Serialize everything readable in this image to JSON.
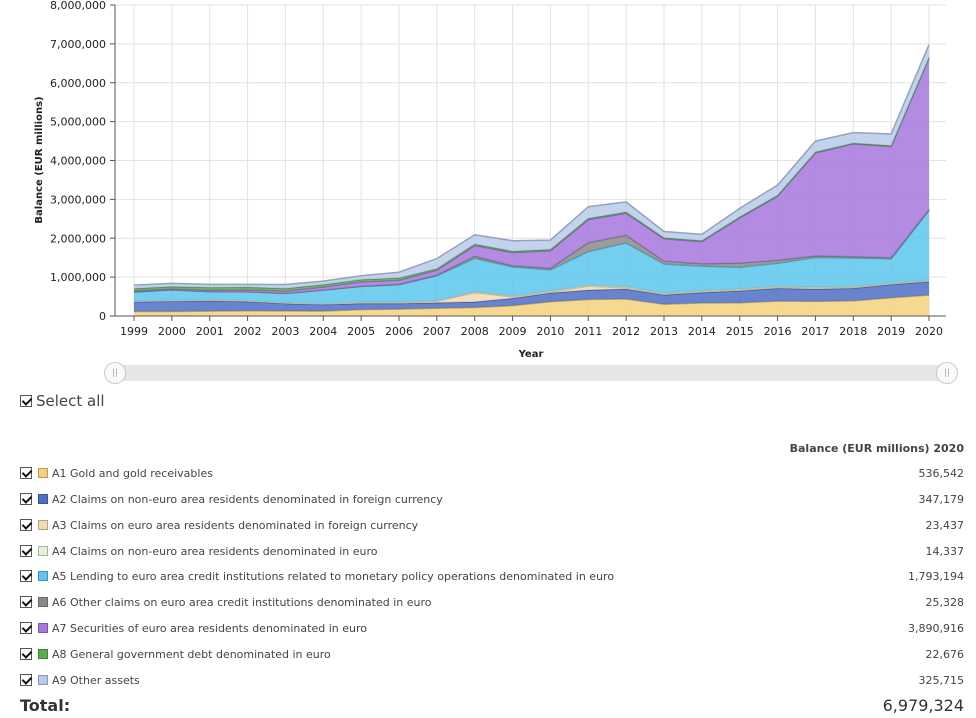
{
  "chart_data": {
    "type": "area",
    "stacked": true,
    "xlabel": "Year",
    "ylabel": "Balance (EUR millions)",
    "ylim": [
      0,
      8000000
    ],
    "yticks": [
      0,
      1000000,
      2000000,
      3000000,
      4000000,
      5000000,
      6000000,
      7000000,
      8000000
    ],
    "ytick_labels": [
      "0",
      "1,000,000",
      "2,000,000",
      "3,000,000",
      "4,000,000",
      "5,000,000",
      "6,000,000",
      "7,000,000",
      "8,000,000"
    ],
    "categories": [
      "1999",
      "2000",
      "2001",
      "2002",
      "2003",
      "2004",
      "2005",
      "2006",
      "2007",
      "2008",
      "2009",
      "2010",
      "2011",
      "2012",
      "2013",
      "2014",
      "2015",
      "2016",
      "2017",
      "2018",
      "2019",
      "2020"
    ],
    "series": [
      {
        "name": "A1 Gold and gold receivables",
        "color": "#f4d27a",
        "values": [
          117000,
          117000,
          126000,
          131000,
          130000,
          125000,
          163000,
          176000,
          201000,
          218000,
          266000,
          367000,
          423000,
          438000,
          303000,
          334000,
          338000,
          383000,
          376000,
          390000,
          470000,
          536542
        ]
      },
      {
        "name": "A2 Claims on non-euro area residents denominated in foreign currency",
        "color": "#4e6fc7",
        "values": [
          250000,
          263000,
          265000,
          240000,
          190000,
          170000,
          160000,
          145000,
          140000,
          145000,
          190000,
          225000,
          245000,
          255000,
          240000,
          272000,
          307000,
          330000,
          315000,
          325000,
          340000,
          347179
        ]
      },
      {
        "name": "A3 Claims on euro area residents denominated in foreign currency",
        "color": "#f5d9b0",
        "values": [
          15000,
          16000,
          22000,
          20000,
          18000,
          18000,
          23000,
          23000,
          40000,
          240000,
          40000,
          30000,
          100000,
          35000,
          23000,
          27000,
          30000,
          30000,
          36000,
          25000,
          22000,
          23437
        ]
      },
      {
        "name": "A4 Claims on non-euro area residents denominated in euro",
        "color": "#e4f0d8",
        "values": [
          8000,
          8000,
          10000,
          12000,
          10000,
          10000,
          10000,
          12000,
          15000,
          20000,
          20000,
          20000,
          25000,
          25000,
          20000,
          20000,
          20000,
          20000,
          15000,
          15000,
          15000,
          14337
        ]
      },
      {
        "name": "A5 Lending to euro area credit institutions related to monetary policy operations denominated in euro",
        "color": "#5bc6ec",
        "values": [
          225000,
          268000,
          203000,
          221000,
          235000,
          345000,
          405000,
          450000,
          637000,
          860000,
          749000,
          546000,
          863000,
          1126000,
          752000,
          630000,
          558000,
          595000,
          764000,
          736000,
          624000,
          1793194
        ]
      },
      {
        "name": "A6 Other claims on euro area credit institutions denominated in euro",
        "color": "#8a8a8a",
        "values": [
          12000,
          2000,
          0,
          0,
          0,
          0,
          5000,
          10000,
          20000,
          57000,
          27000,
          45000,
          230000,
          200000,
          75000,
          60000,
          110000,
          75000,
          40000,
          35000,
          30000,
          25328
        ]
      },
      {
        "name": "A7 Securities of euro area residents denominated in euro",
        "color": "#a777dd",
        "values": [
          22000,
          25000,
          40000,
          48000,
          60000,
          78000,
          112000,
          104000,
          126000,
          272000,
          338000,
          445000,
          592000,
          566000,
          573000,
          570000,
          1160000,
          1650000,
          2650000,
          2900000,
          2860000,
          3890916
        ]
      },
      {
        "name": "A8 General government debt denominated in euro",
        "color": "#58ad52",
        "values": [
          60000,
          58000,
          68000,
          68000,
          66000,
          62000,
          58000,
          56000,
          38000,
          37000,
          36000,
          35000,
          33000,
          29000,
          28000,
          26000,
          26000,
          24000,
          23000,
          22000,
          22000,
          22676
        ]
      },
      {
        "name": "A9 Other assets",
        "color": "#b9cbea",
        "values": [
          84000,
          82000,
          80000,
          74000,
          100000,
          90000,
          100000,
          150000,
          260000,
          240000,
          270000,
          240000,
          300000,
          260000,
          160000,
          160000,
          220000,
          260000,
          280000,
          270000,
          300000,
          325715
        ]
      }
    ]
  },
  "controls": {
    "select_all_label": "Select all",
    "column_header": "Balance (EUR millions) 2020",
    "slider_handle_left": "||",
    "slider_handle_right": "||"
  },
  "legend": [
    {
      "label": "A1 Gold and gold receivables",
      "value": "536,542",
      "color": "#f4d27a"
    },
    {
      "label": "A2 Claims on non-euro area residents denominated in foreign currency",
      "value": "347,179",
      "color": "#4e6fc7"
    },
    {
      "label": "A3 Claims on euro area residents denominated in foreign currency",
      "value": "23,437",
      "color": "#f5d9b0"
    },
    {
      "label": "A4 Claims on non-euro area residents denominated in euro",
      "value": "14,337",
      "color": "#e4f0d8"
    },
    {
      "label": "A5 Lending to euro area credit institutions related to monetary policy operations denominated in euro",
      "value": "1,793,194",
      "color": "#5bc6ec"
    },
    {
      "label": "A6 Other claims on euro area credit institutions denominated in euro",
      "value": "25,328",
      "color": "#8a8a8a"
    },
    {
      "label": "A7 Securities of euro area residents denominated in euro",
      "value": "3,890,916",
      "color": "#a777dd"
    },
    {
      "label": "A8 General government debt denominated in euro",
      "value": "22,676",
      "color": "#58ad52"
    },
    {
      "label": "A9 Other assets",
      "value": "325,715",
      "color": "#b9cbea"
    }
  ],
  "total": {
    "label": "Total:",
    "value": "6,979,324"
  }
}
